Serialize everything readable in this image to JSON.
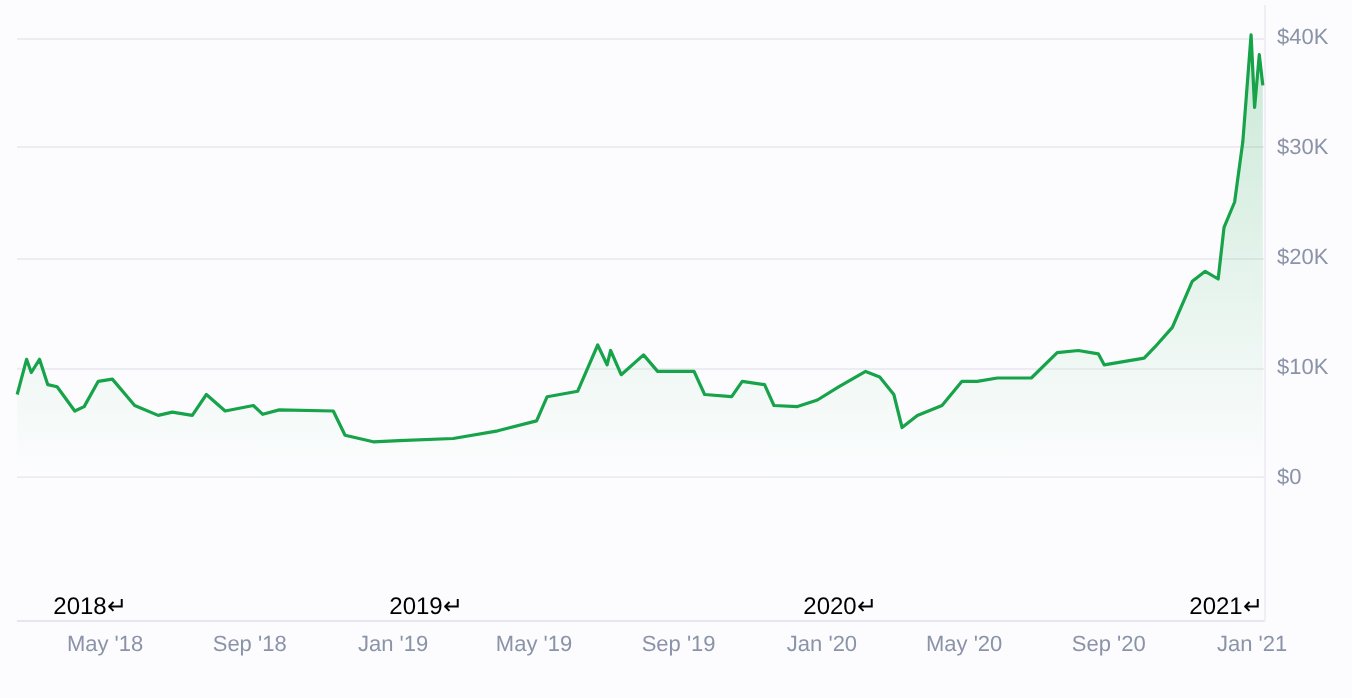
{
  "chart_data": {
    "type": "area",
    "x": [
      "2018-02-16",
      "2018-02-24",
      "2018-02-28",
      "2018-03-07",
      "2018-03-14",
      "2018-03-22",
      "2018-04-06",
      "2018-04-14",
      "2018-04-26",
      "2018-05-08",
      "2018-05-27",
      "2018-06-16",
      "2018-06-28",
      "2018-07-15",
      "2018-07-27",
      "2018-08-12",
      "2018-09-05",
      "2018-09-13",
      "2018-09-27",
      "2018-11-12",
      "2018-11-22",
      "2018-12-16",
      "2019-01-07",
      "2019-02-22",
      "2019-04-01",
      "2019-05-04",
      "2019-05-13",
      "2019-06-08",
      "2019-06-25",
      "2019-07-03",
      "2019-07-06",
      "2019-07-15",
      "2019-08-03",
      "2019-08-15",
      "2019-09-02",
      "2019-09-15",
      "2019-09-24",
      "2019-10-17",
      "2019-10-26",
      "2019-11-14",
      "2019-11-22",
      "2019-12-12",
      "2019-12-29",
      "2020-01-16",
      "2020-02-08",
      "2020-02-20",
      "2020-03-03",
      "2020-03-10",
      "2020-03-23",
      "2020-04-13",
      "2020-04-30",
      "2020-05-13",
      "2020-05-30",
      "2020-06-28",
      "2020-07-20",
      "2020-08-07",
      "2020-08-24",
      "2020-08-29",
      "2020-10-02",
      "2020-10-11",
      "2020-10-26",
      "2020-11-12",
      "2020-11-23",
      "2020-12-04",
      "2020-12-09",
      "2020-12-18",
      "2020-12-25",
      "2021-01-01",
      "2021-01-04",
      "2021-01-08",
      "2021-01-11"
    ],
    "series": [
      {
        "color": "#16a34a",
        "values": [
          7500,
          10700,
          9500,
          10700,
          8400,
          8200,
          6000,
          6400,
          8700,
          8900,
          6500,
          5600,
          5900,
          5600,
          7500,
          6000,
          6500,
          5700,
          6100,
          6000,
          3800,
          3200,
          3300,
          3500,
          4200,
          5100,
          7300,
          7800,
          12000,
          10200,
          11500,
          9300,
          11100,
          9600,
          9600,
          9600,
          7500,
          7300,
          8700,
          8400,
          6500,
          6400,
          7000,
          8200,
          9600,
          9100,
          7500,
          4500,
          5600,
          6500,
          8700,
          8700,
          9000,
          9000,
          11300,
          11500,
          11200,
          10200,
          10800,
          11800,
          13600,
          17800,
          18700,
          18000,
          22700,
          25000,
          30500,
          40200,
          33600,
          38400,
          35600
        ]
      }
    ],
    "xlim": [
      "2018-02-15",
      "2021-01-12"
    ],
    "xticks": [
      {
        "value": "2018-05-01",
        "label": "May '18"
      },
      {
        "value": "2018-09-01",
        "label": "Sep '18"
      },
      {
        "value": "2019-01-01",
        "label": "Jan '19"
      },
      {
        "value": "2019-05-01",
        "label": "May '19"
      },
      {
        "value": "2019-09-01",
        "label": "Sep '19"
      },
      {
        "value": "2020-01-01",
        "label": "Jan '20"
      },
      {
        "value": "2020-05-01",
        "label": "May '20"
      },
      {
        "value": "2020-09-01",
        "label": "Sep '20"
      },
      {
        "value": "2021-01-01",
        "label": "Jan '21"
      }
    ],
    "ylim": [
      -13000,
      43000
    ],
    "yticks": [
      {
        "value": 0,
        "label": "$0"
      },
      {
        "value": 10000,
        "label": "$10K"
      },
      {
        "value": 20000,
        "label": "$20K"
      },
      {
        "value": 30000,
        "label": "$30K"
      },
      {
        "value": 40000,
        "label": "$40K"
      }
    ],
    "grid": "y",
    "annotations": [
      "2018↵",
      "2019↵",
      "2020↵",
      "2021↵"
    ]
  }
}
